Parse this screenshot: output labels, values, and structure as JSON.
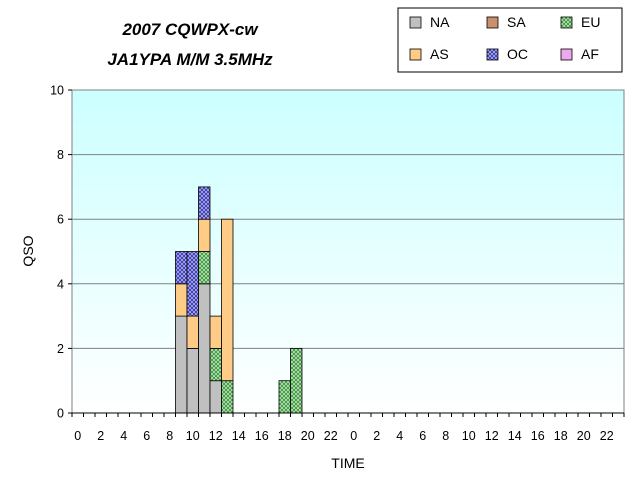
{
  "chart_data": {
    "type": "bar",
    "stacked": true,
    "title_line1": "2007 CQWPX-cw",
    "title_line2": "JA1YPA  M/M  3.5MHz",
    "xlabel": "TIME",
    "ylabel": "QSO",
    "ylim": [
      0,
      10
    ],
    "yticks": [
      0,
      2,
      4,
      6,
      8,
      10
    ],
    "grid": true,
    "legend_position": "top-right",
    "hours": [
      0,
      1,
      2,
      3,
      4,
      5,
      6,
      7,
      8,
      9,
      10,
      11,
      12,
      13,
      14,
      15,
      16,
      17,
      18,
      19,
      20,
      21,
      22,
      23,
      0,
      1,
      2,
      3,
      4,
      5,
      6,
      7,
      8,
      9,
      10,
      11,
      12,
      13,
      14,
      15,
      16,
      17,
      18,
      19,
      20,
      21,
      22,
      23
    ],
    "x_tick_labels": [
      "0",
      "2",
      "4",
      "6",
      "8",
      "10",
      "12",
      "14",
      "16",
      "18",
      "20",
      "22",
      "0",
      "2",
      "4",
      "6",
      "8",
      "10",
      "12",
      "14",
      "16",
      "18",
      "20",
      "22"
    ],
    "series": [
      {
        "name": "NA",
        "color": "#c0c0c0",
        "pattern": "solid",
        "values": [
          0,
          0,
          0,
          0,
          0,
          0,
          0,
          0,
          0,
          3,
          2,
          4,
          1,
          0,
          0,
          0,
          0,
          0,
          0,
          0,
          0,
          0,
          0,
          0,
          0,
          0,
          0,
          0,
          0,
          0,
          0,
          0,
          0,
          0,
          0,
          0,
          0,
          0,
          0,
          0,
          0,
          0,
          0,
          0,
          0,
          0,
          0,
          0
        ]
      },
      {
        "name": "SA",
        "color": "#c8906c",
        "pattern": "solid",
        "values": [
          0,
          0,
          0,
          0,
          0,
          0,
          0,
          0,
          0,
          0,
          0,
          0,
          0,
          0,
          0,
          0,
          0,
          0,
          0,
          0,
          0,
          0,
          0,
          0,
          0,
          0,
          0,
          0,
          0,
          0,
          0,
          0,
          0,
          0,
          0,
          0,
          0,
          0,
          0,
          0,
          0,
          0,
          0,
          0,
          0,
          0,
          0,
          0
        ]
      },
      {
        "name": "EU",
        "color": "#99dd99",
        "pattern": "check",
        "values": [
          0,
          0,
          0,
          0,
          0,
          0,
          0,
          0,
          0,
          0,
          0,
          1,
          1,
          1,
          0,
          0,
          0,
          0,
          1,
          2,
          0,
          0,
          0,
          0,
          0,
          0,
          0,
          0,
          0,
          0,
          0,
          0,
          0,
          0,
          0,
          0,
          0,
          0,
          0,
          0,
          0,
          0,
          0,
          0,
          0,
          0,
          0,
          0
        ]
      },
      {
        "name": "AS",
        "color": "#ffcc88",
        "pattern": "solid",
        "values": [
          0,
          0,
          0,
          0,
          0,
          0,
          0,
          0,
          0,
          1,
          1,
          1,
          1,
          5,
          0,
          0,
          0,
          0,
          0,
          0,
          0,
          0,
          0,
          0,
          0,
          0,
          0,
          0,
          0,
          0,
          0,
          0,
          0,
          0,
          0,
          0,
          0,
          0,
          0,
          0,
          0,
          0,
          0,
          0,
          0,
          0,
          0,
          0
        ]
      },
      {
        "name": "OC",
        "color": "#8888ee",
        "pattern": "check",
        "values": [
          0,
          0,
          0,
          0,
          0,
          0,
          0,
          0,
          0,
          1,
          2,
          1,
          0,
          0,
          0,
          0,
          0,
          0,
          0,
          0,
          0,
          0,
          0,
          0,
          0,
          0,
          0,
          0,
          0,
          0,
          0,
          0,
          0,
          0,
          0,
          0,
          0,
          0,
          0,
          0,
          0,
          0,
          0,
          0,
          0,
          0,
          0,
          0
        ]
      },
      {
        "name": "AF",
        "color": "#eea8ee",
        "pattern": "solid",
        "values": [
          0,
          0,
          0,
          0,
          0,
          0,
          0,
          0,
          0,
          0,
          0,
          0,
          0,
          0,
          0,
          0,
          0,
          0,
          0,
          0,
          0,
          0,
          0,
          0,
          0,
          0,
          0,
          0,
          0,
          0,
          0,
          0,
          0,
          0,
          0,
          0,
          0,
          0,
          0,
          0,
          0,
          0,
          0,
          0,
          0,
          0,
          0,
          0
        ]
      }
    ]
  }
}
